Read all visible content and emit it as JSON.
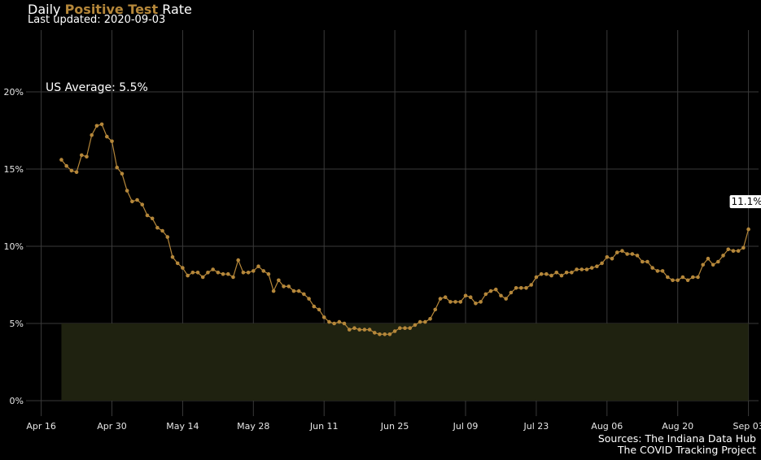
{
  "header": {
    "title_prefix": "Daily ",
    "title_highlight": "Positive Test",
    "title_suffix": " Rate",
    "subtitle": "Last updated: 2020-09-03"
  },
  "sources": {
    "line1": "Sources: The Indiana Data Hub",
    "line2": "The COVID Tracking Project"
  },
  "colors": {
    "background": "#000000",
    "line": "#b5873a",
    "band": "#1f2210",
    "grid": "#3a3a3a"
  },
  "chart_data": {
    "type": "line",
    "xlabel": "",
    "ylabel": "",
    "ylim": [
      -1,
      24
    ],
    "y_ticks": [
      0,
      5,
      10,
      15,
      20
    ],
    "y_tick_labels": [
      "0%",
      "5%",
      "10%",
      "15%",
      "20%"
    ],
    "x_ticks": [
      "2020-04-16",
      "2020-04-30",
      "2020-05-14",
      "2020-05-28",
      "2020-06-11",
      "2020-06-25",
      "2020-07-09",
      "2020-07-23",
      "2020-08-06",
      "2020-08-20",
      "2020-09-03"
    ],
    "x_tick_labels": [
      "Apr 16",
      "Apr 30",
      "May 14",
      "May 28",
      "Jun 11",
      "Jun 25",
      "Jul 09",
      "Jul 23",
      "Aug 06",
      "Aug 20",
      "Sep 03"
    ],
    "grid": true,
    "us_average_label": "US Average: 5.5%",
    "last_value_label": "11.1%",
    "band": {
      "from": "2020-04-20",
      "to": "2020-09-03",
      "y_min": 0,
      "y_max": 5
    },
    "series": [
      {
        "start_date": "2020-04-20",
        "values": [
          15.6,
          15.2,
          14.9,
          14.8,
          15.9,
          15.8,
          17.2,
          17.8,
          17.9,
          17.1,
          16.8,
          15.1,
          14.7,
          13.6,
          12.9,
          13.0,
          12.7,
          12.0,
          11.8,
          11.2,
          11.0,
          10.6,
          9.3,
          8.9,
          8.6,
          8.1,
          8.3,
          8.3,
          8.0,
          8.3,
          8.5,
          8.3,
          8.2,
          8.2,
          8.0,
          9.1,
          8.3,
          8.3,
          8.4,
          8.7,
          8.4,
          8.2,
          7.1,
          7.8,
          7.4,
          7.4,
          7.1,
          7.1,
          6.9,
          6.6,
          6.1,
          5.9,
          5.4,
          5.1,
          5.0,
          5.1,
          5.0,
          4.6,
          4.7,
          4.6,
          4.6,
          4.6,
          4.4,
          4.3,
          4.3,
          4.3,
          4.5,
          4.7,
          4.7,
          4.7,
          4.9,
          5.1,
          5.1,
          5.3,
          5.9,
          6.6,
          6.7,
          6.4,
          6.4,
          6.4,
          6.8,
          6.7,
          6.3,
          6.4,
          6.9,
          7.1,
          7.2,
          6.8,
          6.6,
          7.0,
          7.3,
          7.3,
          7.3,
          7.5,
          8.0,
          8.2,
          8.2,
          8.1,
          8.3,
          8.1,
          8.3,
          8.3,
          8.5,
          8.5,
          8.5,
          8.6,
          8.7,
          8.9,
          9.3,
          9.2,
          9.6,
          9.7,
          9.5,
          9.5,
          9.4,
          9.0,
          9.0,
          8.6,
          8.4,
          8.4,
          8.0,
          7.8,
          7.8,
          8.0,
          7.8,
          8.0,
          8.0,
          8.8,
          9.2,
          8.8,
          9.0,
          9.4,
          9.8,
          9.7,
          9.7,
          9.9,
          11.1
        ]
      }
    ]
  }
}
